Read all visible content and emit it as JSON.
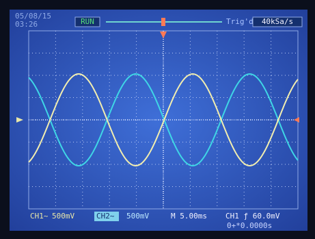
{
  "top_bar": {
    "date": "05/08/15",
    "time": "03:26",
    "status": "RUN",
    "trigger_status": "Trig'd",
    "sample_rate": "40kSa/s"
  },
  "bottom_bar": {
    "ch1_label": "CH1~",
    "ch1_scale": "500mV",
    "ch2_label": "CH2~",
    "ch2_scale": "500mV",
    "timebase": "M 5.00ms",
    "trigger": "CH1 ƒ 60.0mV",
    "offset": "0+*0.0000s"
  }
}
